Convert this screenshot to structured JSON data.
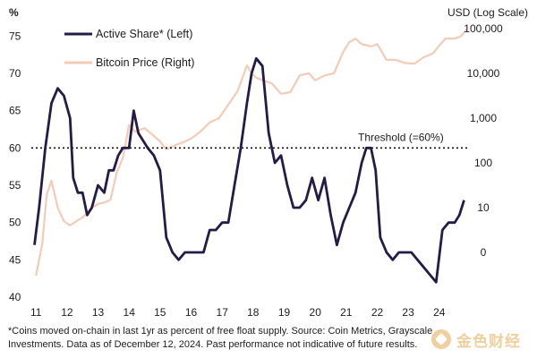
{
  "chart_data": {
    "type": "line",
    "left_axis": {
      "unit_label": "%",
      "ticks": [
        40,
        45,
        50,
        55,
        60,
        65,
        70,
        75
      ],
      "range": [
        40,
        76
      ]
    },
    "right_axis": {
      "unit_label": "USD (Log Scale)",
      "scale": "log",
      "ticks": [
        1,
        10,
        100,
        1000,
        10000,
        100000
      ],
      "tick_labels": [
        "0",
        "10",
        "100",
        "1,000",
        "10,000",
        "100,000"
      ],
      "range": [
        0.1,
        100000
      ]
    },
    "x_axis": {
      "ticks": [
        11,
        12,
        13,
        14,
        15,
        16,
        17,
        18,
        19,
        20,
        21,
        22,
        23,
        24
      ],
      "range": [
        10.85,
        24.9
      ]
    },
    "threshold": {
      "label": "Threshold (=60%)",
      "value": 60
    },
    "grid": false,
    "legend_placement": "top-left",
    "colors": {
      "active_share": "#241b47",
      "bitcoin_price": "#f3cbb6",
      "threshold": "#111111"
    },
    "series": [
      {
        "name": "Active Share* (Left)",
        "axis": "left",
        "x": [
          10.95,
          11.1,
          11.3,
          11.5,
          11.7,
          11.9,
          12.1,
          12.2,
          12.35,
          12.5,
          12.65,
          12.8,
          13.0,
          13.2,
          13.35,
          13.5,
          13.65,
          13.8,
          14.0,
          14.15,
          14.3,
          14.45,
          14.6,
          14.8,
          15.0,
          15.2,
          15.4,
          15.6,
          15.8,
          16.0,
          16.2,
          16.4,
          16.6,
          16.8,
          17.0,
          17.2,
          17.4,
          17.6,
          17.8,
          17.95,
          18.1,
          18.3,
          18.5,
          18.7,
          18.9,
          19.1,
          19.3,
          19.5,
          19.7,
          19.9,
          20.1,
          20.3,
          20.5,
          20.7,
          20.9,
          21.1,
          21.3,
          21.5,
          21.65,
          21.8,
          21.95,
          22.1,
          22.3,
          22.5,
          22.7,
          22.9,
          23.1,
          23.3,
          23.5,
          23.7,
          23.9,
          24.1,
          24.3,
          24.5,
          24.65,
          24.8
        ],
        "y": [
          47,
          52,
          60,
          66,
          68,
          67,
          64,
          56,
          54,
          54,
          51,
          52,
          55,
          54,
          57,
          57,
          59,
          60,
          60,
          65,
          62,
          61,
          60,
          59,
          57,
          48,
          46,
          45,
          46,
          46,
          46,
          46,
          49,
          49,
          50,
          50,
          55,
          60,
          66,
          70,
          72,
          71,
          62,
          58,
          59,
          55,
          52,
          52,
          53,
          56,
          53,
          56,
          51,
          47,
          50,
          52,
          54,
          58,
          60,
          60,
          57,
          48,
          46,
          45,
          46,
          46,
          46,
          45,
          44,
          43,
          42,
          49,
          50,
          50,
          51,
          53
        ]
      },
      {
        "name": "Bitcoin Price (Right)",
        "axis": "right",
        "x": [
          11.0,
          11.2,
          11.35,
          11.5,
          11.7,
          11.9,
          12.1,
          12.3,
          12.5,
          12.8,
          13.0,
          13.2,
          13.4,
          13.6,
          13.8,
          14.0,
          14.2,
          14.5,
          14.8,
          15.0,
          15.2,
          15.5,
          15.8,
          16.0,
          16.3,
          16.6,
          16.9,
          17.2,
          17.5,
          17.8,
          17.95,
          18.1,
          18.3,
          18.6,
          18.9,
          19.2,
          19.5,
          19.8,
          20.0,
          20.3,
          20.6,
          20.9,
          21.1,
          21.3,
          21.5,
          21.8,
          22.0,
          22.3,
          22.6,
          22.9,
          23.2,
          23.5,
          23.8,
          24.0,
          24.2,
          24.5,
          24.7,
          24.9
        ],
        "y": [
          0.3,
          1.5,
          20,
          40,
          10,
          5,
          4,
          5,
          6,
          10,
          12,
          13,
          15,
          60,
          130,
          700,
          500,
          600,
          400,
          300,
          200,
          250,
          300,
          350,
          500,
          800,
          1000,
          2000,
          4000,
          15000,
          10000,
          8000,
          7000,
          6000,
          3500,
          3800,
          9000,
          10000,
          7000,
          9000,
          10000,
          30000,
          50000,
          60000,
          45000,
          40000,
          45000,
          20000,
          20000,
          17000,
          16500,
          23000,
          28000,
          42000,
          60000,
          60000,
          68000,
          100000
        ]
      }
    ]
  },
  "footnote_lines": [
    "*Coins moved on-chain in last 1yr as percent of free float supply. Source: Coin Metrics, Grayscale",
    "Investments. Data as of December 12, 2024. Past performance not indicative of future results."
  ],
  "watermark": {
    "text": "金色财经"
  }
}
